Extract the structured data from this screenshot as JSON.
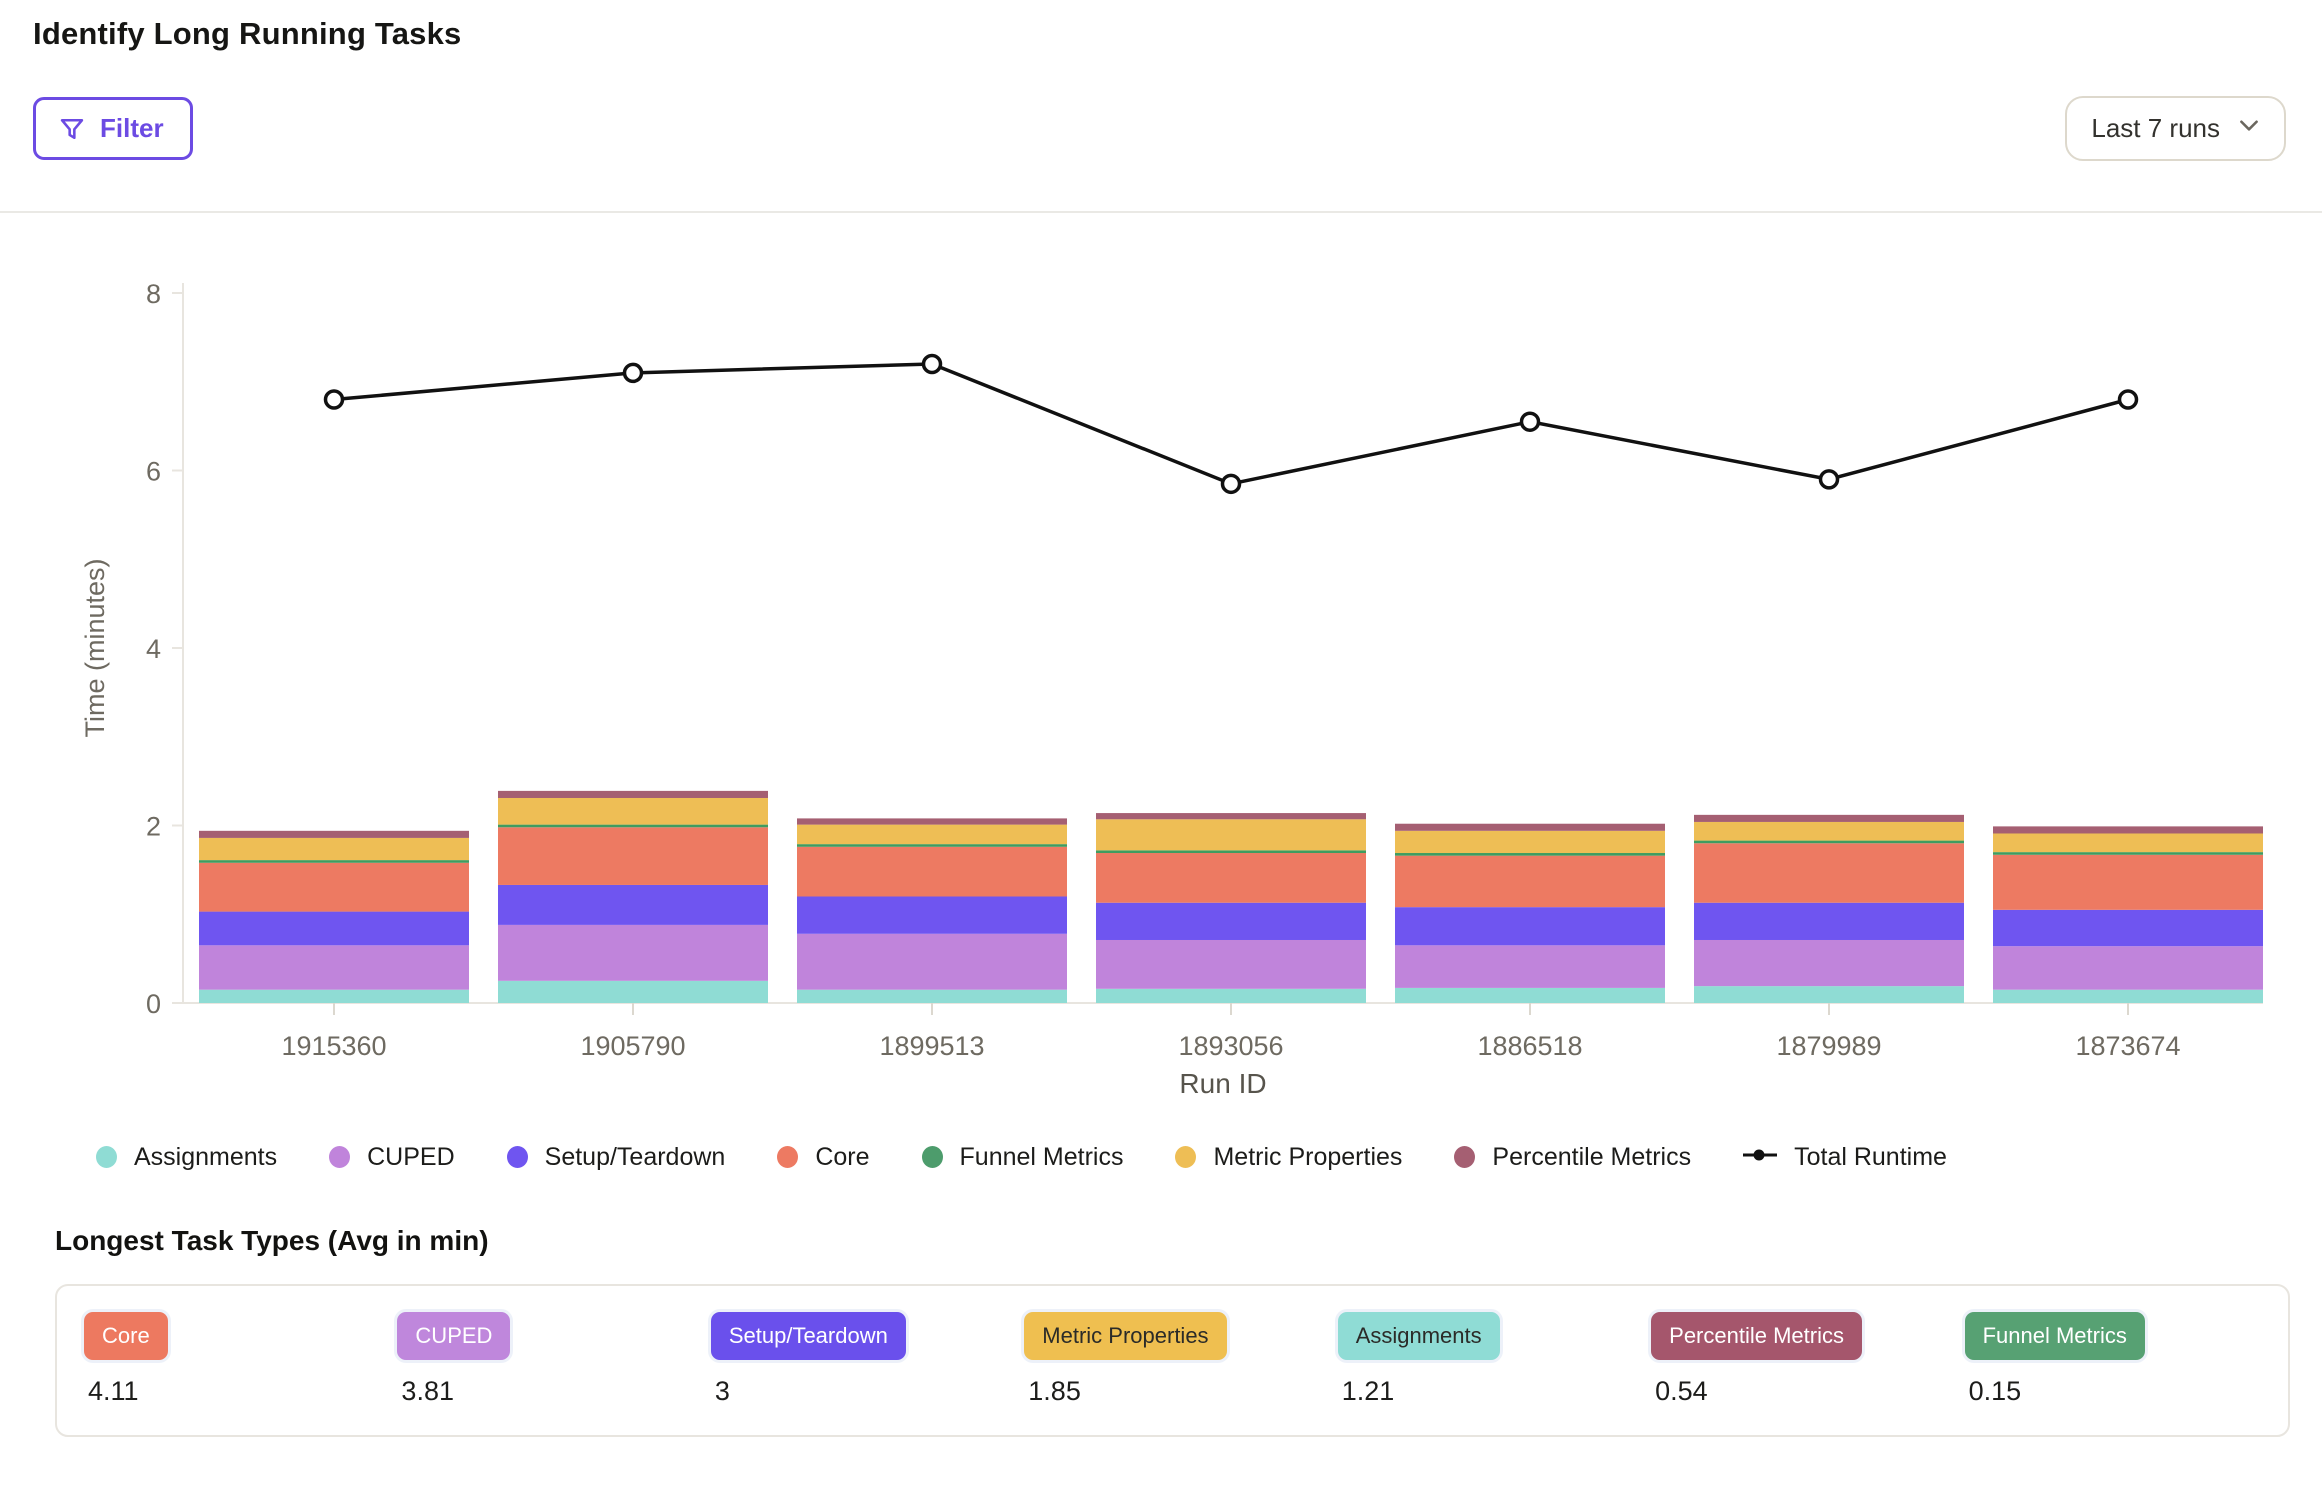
{
  "header": {
    "title": "Identify Long Running Tasks",
    "filter_button": "Filter",
    "range_selector": {
      "value": "Last 7 runs"
    }
  },
  "chart_data": {
    "type": "bar",
    "subtype": "stacked-bar-with-line-overlay",
    "categories": [
      "1915360",
      "1905790",
      "1899513",
      "1893056",
      "1886518",
      "1879989",
      "1873674"
    ],
    "xlabel": "Run ID",
    "ylabel": "Time (minutes)",
    "ylim": [
      0,
      8
    ],
    "yticks": [
      0,
      2,
      4,
      6,
      8
    ],
    "grid": false,
    "legend_position": "bottom",
    "series": [
      {
        "name": "Assignments",
        "color": "#8FDCD4",
        "values": [
          0.15,
          0.25,
          0.15,
          0.16,
          0.17,
          0.19,
          0.15
        ]
      },
      {
        "name": "CUPED",
        "color": "#C084DB",
        "values": [
          0.5,
          0.63,
          0.63,
          0.55,
          0.48,
          0.52,
          0.49
        ]
      },
      {
        "name": "Setup/Teardown",
        "color": "#6F55F0",
        "values": [
          0.38,
          0.45,
          0.42,
          0.42,
          0.43,
          0.42,
          0.41
        ]
      },
      {
        "name": "Core",
        "color": "#ED7A62",
        "values": [
          0.55,
          0.65,
          0.56,
          0.56,
          0.58,
          0.67,
          0.62
        ]
      },
      {
        "name": "Funnel Metrics",
        "color": "#3F9C60",
        "values": [
          0.03,
          0.03,
          0.03,
          0.03,
          0.03,
          0.03,
          0.03
        ]
      },
      {
        "name": "Metric Properties",
        "color": "#EEBE55",
        "values": [
          0.25,
          0.3,
          0.22,
          0.35,
          0.25,
          0.21,
          0.21
        ]
      },
      {
        "name": "Percentile Metrics",
        "color": "#A55F72",
        "values": [
          0.08,
          0.08,
          0.07,
          0.07,
          0.08,
          0.08,
          0.08
        ]
      }
    ],
    "line_series": {
      "name": "Total Runtime",
      "color": "#111111",
      "values": [
        6.8,
        7.1,
        7.2,
        5.85,
        6.55,
        5.9,
        6.8
      ]
    }
  },
  "legend": {
    "items": [
      {
        "label": "Assignments",
        "color": "#8FDCD4",
        "marker": "dot"
      },
      {
        "label": "CUPED",
        "color": "#C084DB",
        "marker": "dot"
      },
      {
        "label": "Setup/Teardown",
        "color": "#6F55F0",
        "marker": "dot"
      },
      {
        "label": "Core",
        "color": "#ED7A62",
        "marker": "dot"
      },
      {
        "label": "Funnel Metrics",
        "color": "#4D9C6C",
        "marker": "dot"
      },
      {
        "label": "Metric Properties",
        "color": "#EEBE55",
        "marker": "dot"
      },
      {
        "label": "Percentile Metrics",
        "color": "#A55F72",
        "marker": "dot"
      },
      {
        "label": "Total Runtime",
        "color": "#111111",
        "marker": "line-dot"
      }
    ]
  },
  "summary": {
    "title": "Longest Task Types (Avg in min)",
    "cards": [
      {
        "label": "Core",
        "value": "4.11",
        "color": "#ED7960",
        "text_color": "#ffffff"
      },
      {
        "label": "CUPED",
        "value": "3.81",
        "color": "#BF87DC",
        "text_color": "#ffffff"
      },
      {
        "label": "Setup/Teardown",
        "value": "3",
        "color": "#6A50EC",
        "text_color": "#ffffff"
      },
      {
        "label": "Metric Properties",
        "value": "1.85",
        "color": "#EFBF50",
        "text_color": "#2b2b28"
      },
      {
        "label": "Assignments",
        "value": "1.21",
        "color": "#8FDCD5",
        "text_color": "#2b2b28"
      },
      {
        "label": "Percentile Metrics",
        "value": "0.54",
        "color": "#A5566C",
        "text_color": "#ffffff"
      },
      {
        "label": "Funnel Metrics",
        "value": "0.15",
        "color": "#57A173",
        "text_color": "#ffffff"
      }
    ]
  }
}
